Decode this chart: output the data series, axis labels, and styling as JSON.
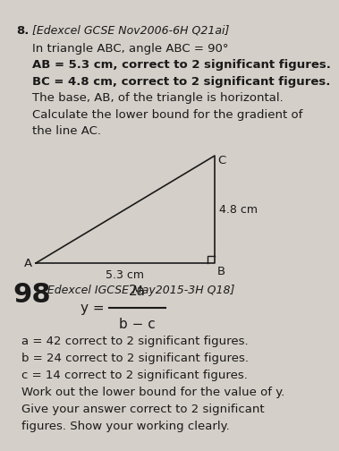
{
  "bg_color": "#d4cfc8",
  "text_color": "#1a1a1a",
  "q8_number": "8.",
  "q8_header": "[Edexcel GCSE Nov2006-6H Q21ai]",
  "q8_line1": "In triangle ABC, angle ABC = 90°",
  "q8_line2": "AB = 5.3 cm, correct to 2 significant figures.",
  "q8_line3": "BC = 4.8 cm, correct to 2 significant figures.",
  "q8_line4": "The base, AB, of the triangle is horizontal.",
  "q8_line5": "Calculate the lower bound for the gradient of",
  "q8_line6": "the line AC.",
  "label_A": "A",
  "label_B": "B",
  "label_C": "C",
  "label_AB": "5.3 cm",
  "label_BC": "4.8 cm",
  "page_num": "98",
  "q9_header": "[Edexcel IGCSE May2015-3H Q18]",
  "q9_formula_num": "2a",
  "q9_formula_den": "b − c",
  "q9_formula_y": "y =",
  "q9_line1": "a = 42 correct to 2 significant figures.",
  "q9_line2": "b = 24 correct to 2 significant figures.",
  "q9_line3": "c = 14 correct to 2 significant figures.",
  "q9_line4": "Work out the lower bound for the value of y.",
  "q9_line5": "Give your answer correct to 2 significant",
  "q9_line6": "figures. Show your working clearly."
}
